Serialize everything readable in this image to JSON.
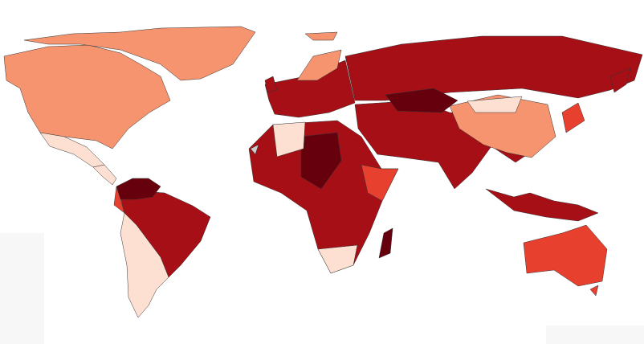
{
  "chart_data": {
    "type": "map",
    "colors": [
      "#fde0d2",
      "#f6946f",
      "#e8402f",
      "#a50f15",
      "#67000d",
      "#cccccc"
    ]
  }
}
